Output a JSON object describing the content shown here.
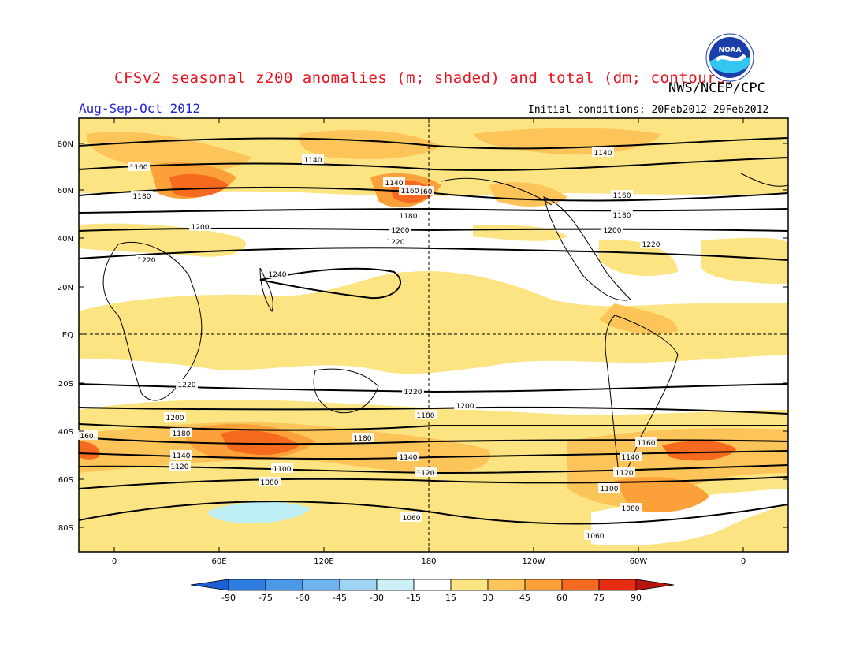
{
  "header": {
    "title": "CFSv2 seasonal z200 anomalies (m; shaded) and total (dm; contours)",
    "agency": "NWS/NCEP/CPC",
    "season": "Aug-Sep-Oct 2012",
    "initial_conditions": "Initial conditions: 20Feb2012-29Feb2012",
    "logo_text": "NOAA"
  },
  "map": {
    "lat_labels": [
      "80N",
      "60N",
      "40N",
      "20N",
      "EQ",
      "20S",
      "40S",
      "60S",
      "80S"
    ],
    "lon_labels": [
      "0",
      "60E",
      "120E",
      "180",
      "120W",
      "60W",
      "0"
    ],
    "contour_labels": [
      {
        "text": "1140"
      },
      {
        "text": "1160"
      },
      {
        "text": "1180"
      },
      {
        "text": "1200"
      },
      {
        "text": "1220"
      },
      {
        "text": "1240"
      },
      {
        "text": "1140"
      },
      {
        "text": "1160"
      },
      {
        "text": "1180"
      },
      {
        "text": "1200"
      },
      {
        "text": "1220"
      },
      {
        "text": "1160"
      },
      {
        "text": "1180"
      },
      {
        "text": "1200"
      },
      {
        "text": "1220"
      },
      {
        "text": "1140"
      },
      {
        "text": "1220"
      },
      {
        "text": "1200"
      },
      {
        "text": "1180"
      },
      {
        "text": "1160"
      },
      {
        "text": "1140"
      },
      {
        "text": "1120"
      },
      {
        "text": "1100"
      },
      {
        "text": "1080"
      },
      {
        "text": "1180"
      },
      {
        "text": "1140"
      },
      {
        "text": "1120"
      },
      {
        "text": "1060"
      },
      {
        "text": "1220"
      },
      {
        "text": "1200"
      },
      {
        "text": "1180"
      },
      {
        "text": "1160"
      },
      {
        "text": "1140"
      },
      {
        "text": "1120"
      },
      {
        "text": "1100"
      },
      {
        "text": "1080"
      },
      {
        "text": "1060"
      },
      {
        "text": "160"
      }
    ]
  },
  "colorbar": {
    "levels": [
      "-90",
      "-75",
      "-60",
      "-45",
      "-30",
      "-15",
      "15",
      "30",
      "45",
      "60",
      "75",
      "90"
    ],
    "colors": [
      "#1a5fd6",
      "#2e7de0",
      "#4a98e6",
      "#6fb4ee",
      "#9fd4f4",
      "#cdeff6",
      "#ffffff",
      "#fde482",
      "#fdc45a",
      "#fca13a",
      "#f56a1e",
      "#e62d14",
      "#b8140e"
    ]
  },
  "colors": {
    "title": "#e8131e",
    "season": "#2525d8",
    "anom_15_30": "#fde482",
    "anom_30_45": "#fdc45a",
    "anom_45_60": "#fca13a",
    "anom_60_75": "#f56a1e",
    "anom_neg": "#bdeef4"
  }
}
